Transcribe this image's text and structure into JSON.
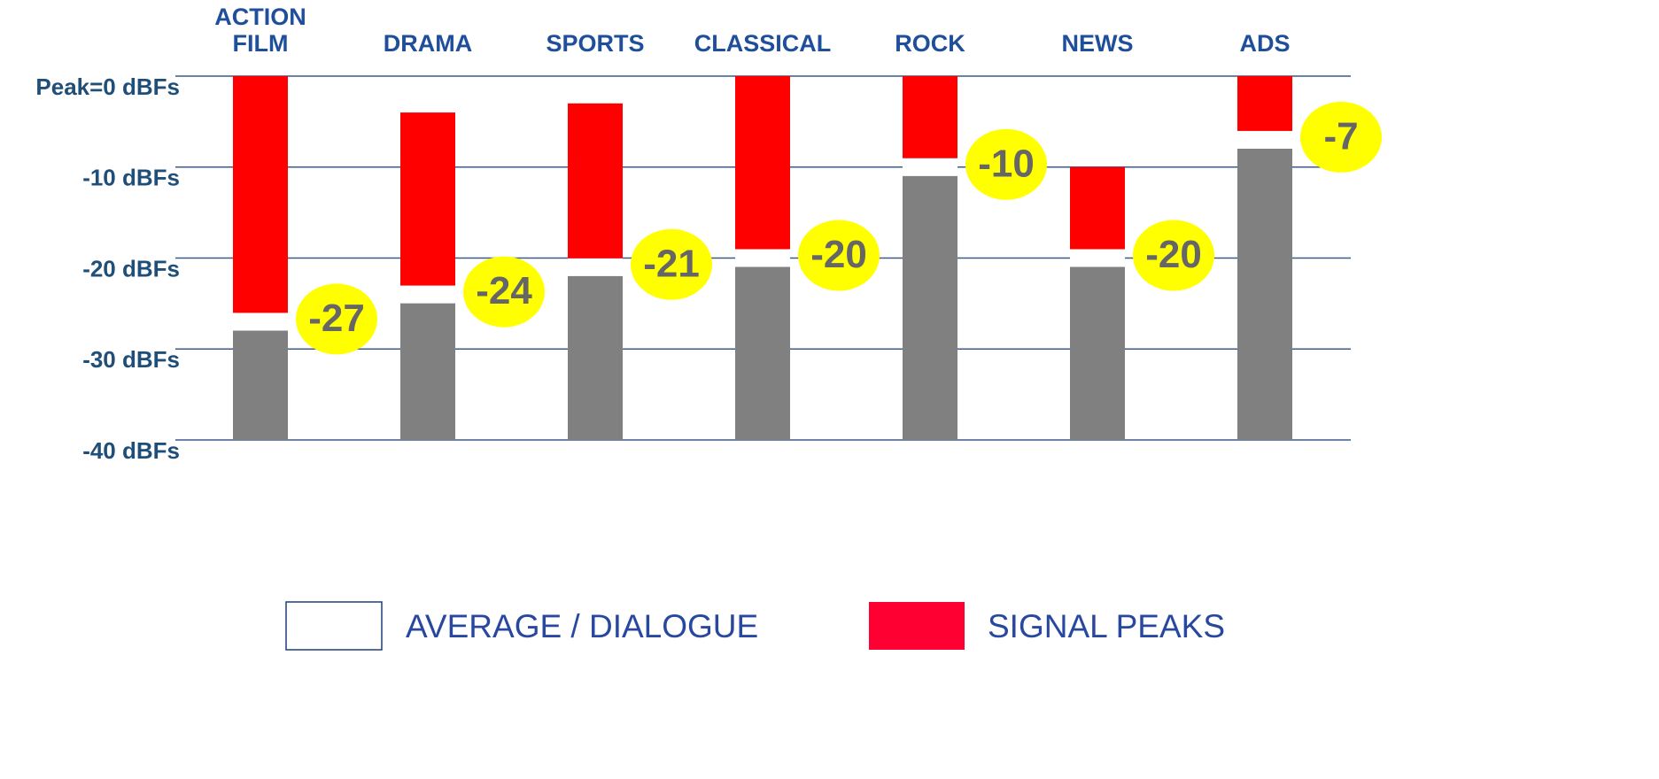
{
  "chart_data": {
    "type": "range-bar",
    "categories": [
      "ACTION\nFILM",
      "DRAMA",
      "SPORTS",
      "CLASSICAL",
      "ROCK",
      "NEWS",
      "ADS"
    ],
    "series": [
      {
        "name": "AVERAGE / DIALOGUE",
        "color": "#ffffff",
        "values": [
          -27,
          -24,
          -21,
          -20,
          -10,
          -20,
          -7
        ]
      },
      {
        "name": "SIGNAL PEAKS",
        "color": "#ff0000",
        "values": [
          0,
          -4,
          -3,
          0,
          0,
          -10,
          0
        ]
      }
    ],
    "ylim": [
      -40,
      0
    ],
    "yticks": [
      {
        "value": 0,
        "label": "Peak=0 dBFs"
      },
      {
        "value": -10,
        "label": "-10 dBFs"
      },
      {
        "value": -20,
        "label": "-20 dBFs"
      },
      {
        "value": -30,
        "label": "-30 dBFs"
      },
      {
        "value": -40,
        "label": "-40 dBFs"
      }
    ],
    "grid": true
  }
}
